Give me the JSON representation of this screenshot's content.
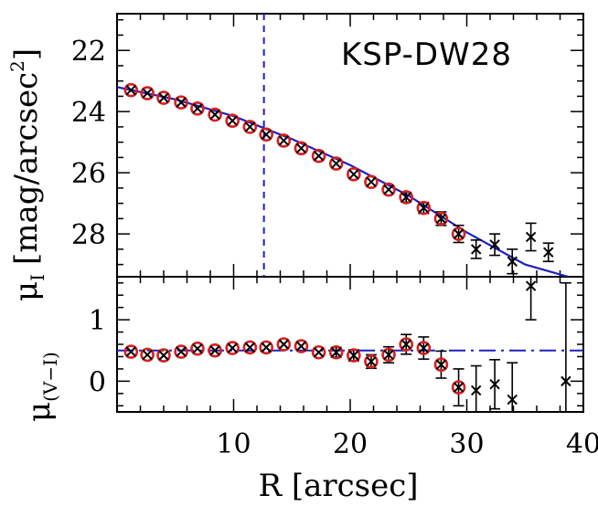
{
  "colors": {
    "model": "#1f1fbf",
    "circle": "#d62020",
    "data": "#000000"
  },
  "chart_data": [
    {
      "type": "scatter",
      "annotation": "KSP-DW28",
      "ylabel_text": "μ",
      "ylabel_sub": "I",
      "ylabel_unit": "[mag/arcsec",
      "ylabel_exp": "2",
      "ylabel_close": "]",
      "xlim": [
        0,
        40
      ],
      "ylim": [
        29.4,
        20.8
      ],
      "y_inverted": true,
      "xticks": [
        10,
        20,
        30,
        40
      ],
      "yticks": [
        22,
        24,
        26,
        28
      ],
      "yticks_text": [
        "22",
        "24",
        "26",
        "28"
      ],
      "vline_x": 12.6,
      "series": [
        {
          "marker": "cross-with-circle",
          "x": [
            1.2,
            2.6,
            4.0,
            5.5,
            6.9,
            8.4,
            9.9,
            11.4,
            12.8,
            14.3,
            15.8,
            17.3,
            18.8,
            20.3,
            21.8,
            23.3,
            24.8,
            26.3,
            27.8,
            29.3
          ],
          "y": [
            23.3,
            23.4,
            23.55,
            23.7,
            23.9,
            24.1,
            24.3,
            24.5,
            24.75,
            24.95,
            25.2,
            25.45,
            25.7,
            26.05,
            26.3,
            26.55,
            26.8,
            27.15,
            27.5,
            28.0
          ],
          "err": [
            0.03,
            0.03,
            0.03,
            0.03,
            0.04,
            0.04,
            0.04,
            0.05,
            0.05,
            0.06,
            0.07,
            0.08,
            0.09,
            0.1,
            0.12,
            0.14,
            0.16,
            0.18,
            0.22,
            0.28
          ]
        },
        {
          "marker": "cross",
          "x": [
            30.8,
            32.4,
            33.9,
            35.5,
            37.0
          ],
          "y": [
            28.5,
            28.35,
            28.9,
            28.1,
            28.6
          ],
          "err": [
            0.3,
            0.35,
            0.4,
            0.45,
            0.3
          ]
        }
      ],
      "model": {
        "type": "line",
        "x": [
          0,
          5,
          10,
          15,
          20,
          25,
          30,
          35,
          38.7
        ],
        "y": [
          23.2,
          23.6,
          24.15,
          24.9,
          25.75,
          26.75,
          27.95,
          29.0,
          29.4
        ]
      }
    },
    {
      "type": "scatter",
      "ylabel_text": "μ",
      "ylabel_sub": "(V−I)",
      "xlabel": "R [arcsec]",
      "xlim": [
        0,
        40
      ],
      "ylim": [
        -0.5,
        1.7
      ],
      "xticks": [
        10,
        20,
        30,
        40
      ],
      "xticks_text": [
        "10",
        "20",
        "30",
        "40"
      ],
      "yticks": [
        0,
        1
      ],
      "yticks_text": [
        "0",
        "1"
      ],
      "series": [
        {
          "marker": "cross-with-circle",
          "x": [
            1.2,
            2.6,
            4.0,
            5.5,
            6.9,
            8.4,
            9.9,
            11.4,
            12.8,
            14.3,
            15.8,
            17.3,
            18.8,
            20.3,
            21.8,
            23.3,
            24.8,
            26.3,
            27.8,
            29.3
          ],
          "y": [
            0.48,
            0.43,
            0.42,
            0.48,
            0.53,
            0.5,
            0.54,
            0.55,
            0.55,
            0.6,
            0.57,
            0.47,
            0.47,
            0.42,
            0.32,
            0.43,
            0.6,
            0.54,
            0.27,
            -0.1
          ],
          "err": [
            0.02,
            0.02,
            0.02,
            0.02,
            0.03,
            0.03,
            0.03,
            0.03,
            0.04,
            0.05,
            0.06,
            0.07,
            0.08,
            0.09,
            0.11,
            0.13,
            0.16,
            0.18,
            0.22,
            0.3
          ]
        },
        {
          "marker": "cross",
          "x": [
            30.8,
            32.4,
            33.9,
            35.5,
            38.5
          ],
          "y": [
            -0.15,
            -0.05,
            -0.3,
            1.55,
            0.0
          ],
          "err": [
            0.4,
            0.4,
            0.6,
            0.55,
            1.6
          ]
        }
      ],
      "model": {
        "type": "dashdot",
        "y": 0.5
      }
    }
  ]
}
